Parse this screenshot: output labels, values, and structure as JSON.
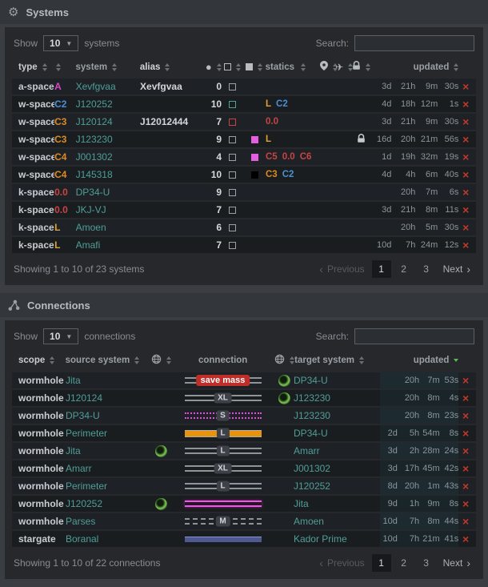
{
  "palette": {
    "magenta": "#d747c8",
    "blue": "#4d8fd3",
    "orange": "#dd8a20",
    "lowsec": "#e0a131",
    "red": "#c74543",
    "teal_link": "#4f9e98",
    "gray": "#9aa0a6",
    "teal": "#4f9e98",
    "magenta_fill": "#e35fe0",
    "black_fill": "#000000",
    "delete_red": "#c0392c",
    "accent_green": "#5cb85c",
    "lock_gray": "#c5c9cd"
  },
  "systems": {
    "title": "Systems",
    "controls": {
      "show": "Show",
      "page_size": "10",
      "unit": "systems",
      "search_label": "Search:",
      "search_value": ""
    },
    "columns": [
      {
        "key": "type",
        "label": "type",
        "sort": true
      },
      {
        "key": "sec",
        "label": "",
        "sort": true
      },
      {
        "key": "system",
        "label": "system",
        "sort": true
      },
      {
        "key": "alias",
        "label": "alias",
        "sort": true
      },
      {
        "key": "count",
        "icon": "circle-icon",
        "sort": true
      },
      {
        "key": "sq",
        "icon": "square-outline-icon",
        "sort": true
      },
      {
        "key": "fsq",
        "icon": "square-filled-icon",
        "sort": true
      },
      {
        "key": "statics",
        "label": "statics",
        "sort": true
      },
      {
        "key": "pin",
        "icon": "map-pin-icon",
        "sort": true
      },
      {
        "key": "plane",
        "icon": "plane-icon",
        "sort": true
      },
      {
        "key": "lock",
        "icon": "lock-icon",
        "sort": true
      },
      {
        "key": "updated",
        "label": "updated",
        "sort": true
      },
      {
        "key": "del",
        "label": "",
        "sort": false
      }
    ],
    "rows": [
      {
        "type": "a-space",
        "sec": {
          "text": "A",
          "color": "magenta"
        },
        "system": "Xevfgvaa",
        "alias": "Xevfgvaa",
        "count": "0",
        "status": "gray",
        "flag": null,
        "statics": [],
        "lock": false,
        "updated": [
          "3d",
          "21h",
          "9m",
          "30s"
        ]
      },
      {
        "type": "w-space",
        "sec": {
          "text": "C2",
          "color": "blue"
        },
        "system": "J120252",
        "alias": "",
        "count": "10",
        "status": "teal",
        "flag": null,
        "statics": [
          {
            "text": "L",
            "color": "lowsec"
          },
          {
            "text": "C2",
            "color": "blue"
          }
        ],
        "lock": false,
        "updated": [
          "4d",
          "18h",
          "12m",
          "1s"
        ]
      },
      {
        "type": "w-space",
        "sec": {
          "text": "C3",
          "color": "orange"
        },
        "system": "J120124",
        "alias": "J12012444",
        "count": "7",
        "status": "red",
        "flag": null,
        "statics": [
          {
            "text": "0.0",
            "color": "red"
          }
        ],
        "lock": false,
        "updated": [
          "3d",
          "21h",
          "9m",
          "30s"
        ]
      },
      {
        "type": "w-space",
        "sec": {
          "text": "C3",
          "color": "orange"
        },
        "system": "J123230",
        "alias": "",
        "count": "9",
        "status": "gray",
        "flag": "magenta_fill",
        "statics": [
          {
            "text": "L",
            "color": "lowsec"
          }
        ],
        "lock": true,
        "updated": [
          "16d",
          "20h",
          "21m",
          "56s"
        ]
      },
      {
        "type": "w-space",
        "sec": {
          "text": "C4",
          "color": "orange"
        },
        "system": "J001302",
        "alias": "",
        "count": "4",
        "status": "gray",
        "flag": "magenta_fill",
        "statics": [
          {
            "text": "C5",
            "color": "red"
          },
          {
            "text": "0.0",
            "color": "red"
          },
          {
            "text": "C6",
            "color": "red"
          }
        ],
        "lock": false,
        "updated": [
          "1d",
          "19h",
          "32m",
          "19s"
        ]
      },
      {
        "type": "w-space",
        "sec": {
          "text": "C4",
          "color": "orange"
        },
        "system": "J145318",
        "alias": "",
        "count": "10",
        "status": "gray",
        "flag": "black_fill",
        "statics": [
          {
            "text": "C3",
            "color": "orange"
          },
          {
            "text": "C2",
            "color": "blue"
          }
        ],
        "lock": false,
        "updated": [
          "4d",
          "4h",
          "6m",
          "40s"
        ]
      },
      {
        "type": "k-space",
        "sec": {
          "text": "0.0",
          "color": "red"
        },
        "system": "DP34-U",
        "alias": "",
        "count": "9",
        "status": "gray",
        "flag": null,
        "statics": [],
        "lock": false,
        "updated": [
          "",
          "20h",
          "7m",
          "6s"
        ]
      },
      {
        "type": "k-space",
        "sec": {
          "text": "0.0",
          "color": "red"
        },
        "system": "JKJ-VJ",
        "alias": "",
        "count": "7",
        "status": "gray",
        "flag": null,
        "statics": [],
        "lock": false,
        "updated": [
          "3d",
          "21h",
          "8m",
          "11s"
        ]
      },
      {
        "type": "k-space",
        "sec": {
          "text": "L",
          "color": "lowsec"
        },
        "system": "Amoen",
        "alias": "",
        "count": "6",
        "status": "gray",
        "flag": null,
        "statics": [],
        "lock": false,
        "updated": [
          "",
          "20h",
          "5m",
          "30s"
        ]
      },
      {
        "type": "k-space",
        "sec": {
          "text": "L",
          "color": "lowsec"
        },
        "system": "Amafi",
        "alias": "",
        "count": "7",
        "status": "gray",
        "flag": null,
        "statics": [],
        "lock": false,
        "updated": [
          "10d",
          "7h",
          "24m",
          "12s"
        ]
      }
    ],
    "footer": {
      "info": "Showing 1 to 10 of 23 systems",
      "previous": "Previous",
      "pages": [
        "1",
        "2",
        "3"
      ],
      "active_page": "1",
      "next": "Next"
    }
  },
  "connections": {
    "title": "Connections",
    "controls": {
      "show": "Show",
      "page_size": "10",
      "unit": "connections",
      "search_label": "Search:",
      "search_value": ""
    },
    "columns": [
      {
        "key": "scope",
        "label": "scope",
        "sort": true
      },
      {
        "key": "source",
        "label": "source system",
        "sort": true
      },
      {
        "key": "globe1",
        "icon": "globe-icon",
        "sort": true
      },
      {
        "key": "conn",
        "label": "connection",
        "sort": false
      },
      {
        "key": "globe2",
        "icon": "globe-icon",
        "sort": true
      },
      {
        "key": "target",
        "label": "target system",
        "sort": true
      },
      {
        "key": "updated",
        "label": "updated",
        "sort": true,
        "sort_active": "desc"
      },
      {
        "key": "del",
        "label": "",
        "sort": false
      }
    ],
    "rows": [
      {
        "scope": "wormhole",
        "source": "Jita",
        "source_globe": false,
        "line": "double-gray",
        "badge": "save mass",
        "badge_variant": "danger",
        "target_globe": true,
        "target": "DP34-U",
        "updated": [
          "",
          "20h",
          "7m",
          "53s"
        ]
      },
      {
        "scope": "wormhole",
        "source": "J120124",
        "source_globe": false,
        "line": "double-gray",
        "badge": "XL",
        "badge_variant": "default",
        "target_globe": true,
        "target": "J123230",
        "updated": [
          "",
          "20h",
          "8m",
          "4s"
        ]
      },
      {
        "scope": "wormhole",
        "source": "DP34-U",
        "source_globe": false,
        "line": "dotted-magenta",
        "badge": "S",
        "badge_variant": "default",
        "target_globe": false,
        "target": "J123230",
        "updated": [
          "",
          "20h",
          "8m",
          "23s"
        ]
      },
      {
        "scope": "wormhole",
        "source": "Perimeter",
        "source_globe": false,
        "line": "solid-orange",
        "badge": "L",
        "badge_variant": "default",
        "target_globe": false,
        "target": "DP34-U",
        "updated": [
          "2d",
          "5h",
          "54m",
          "8s"
        ]
      },
      {
        "scope": "wormhole",
        "source": "Jita",
        "source_globe": true,
        "line": "double-gray",
        "badge": "L",
        "badge_variant": "default",
        "target_globe": false,
        "target": "Amarr",
        "updated": [
          "3d",
          "2h",
          "28m",
          "24s"
        ]
      },
      {
        "scope": "wormhole",
        "source": "Amarr",
        "source_globe": false,
        "line": "double-gray",
        "badge": "XL",
        "badge_variant": "default",
        "target_globe": false,
        "target": "J001302",
        "updated": [
          "3d",
          "17h",
          "45m",
          "42s"
        ]
      },
      {
        "scope": "wormhole",
        "source": "Perimeter",
        "source_globe": false,
        "line": "double-gray",
        "badge": "L",
        "badge_variant": "default",
        "target_globe": false,
        "target": "J120252",
        "updated": [
          "8d",
          "20h",
          "1m",
          "43s"
        ]
      },
      {
        "scope": "wormhole",
        "source": "J120252",
        "source_globe": true,
        "line": "double-magenta",
        "badge": null,
        "badge_variant": null,
        "target_globe": false,
        "target": "Jita",
        "updated": [
          "9d",
          "1h",
          "9m",
          "8s"
        ]
      },
      {
        "scope": "wormhole",
        "source": "Parses",
        "source_globe": false,
        "line": "dashed-gray",
        "badge": "M",
        "badge_variant": "default",
        "target_globe": false,
        "target": "Amoen",
        "updated": [
          "10d",
          "7h",
          "8m",
          "44s"
        ]
      },
      {
        "scope": "stargate",
        "source": "Boranal",
        "source_globe": false,
        "line": "solid-indigo",
        "badge": null,
        "badge_variant": null,
        "target_globe": false,
        "target": "Kador Prime",
        "updated": [
          "10d",
          "7h",
          "21m",
          "41s"
        ]
      }
    ],
    "footer": {
      "info": "Showing 1 to 10 of 22 connections",
      "previous": "Previous",
      "pages": [
        "1",
        "2",
        "3"
      ],
      "active_page": "1",
      "next": "Next"
    }
  }
}
